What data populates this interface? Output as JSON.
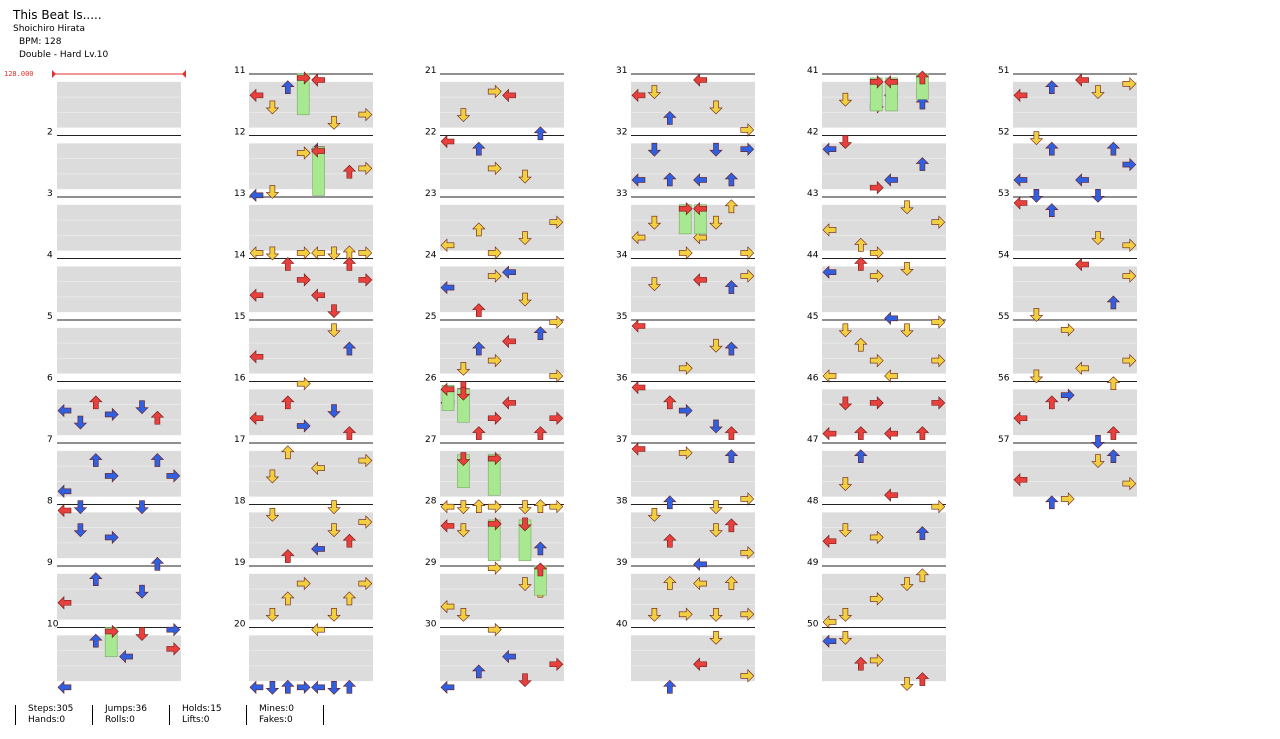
{
  "song": {
    "title": "This Beat Is.....",
    "artist": "Shoichiro Hirata",
    "bpm_text": "BPM: 128",
    "difficulty": "Double - Hard Lv.10",
    "bpm_marker": "128.000"
  },
  "colors": {
    "red": "#e8403c",
    "blue": "#3060e0",
    "yellow": "#f0d040",
    "hold_green": "#a8e890",
    "stripe_gray": "#dcdcdc",
    "bpm_red": "#e03030"
  },
  "measure_labels": [
    "2",
    "3",
    "4",
    "5",
    "6",
    "7",
    "8",
    "9",
    "10",
    "11",
    "12",
    "13",
    "14",
    "15",
    "16",
    "17",
    "18",
    "19",
    "20",
    "21",
    "22",
    "23",
    "24",
    "25",
    "26",
    "27",
    "28",
    "29",
    "30",
    "31",
    "32",
    "33",
    "34",
    "35",
    "36",
    "37",
    "38",
    "39",
    "40",
    "41",
    "42",
    "43",
    "44",
    "45",
    "46",
    "47",
    "48",
    "49",
    "50",
    "51",
    "52",
    "53",
    "54",
    "55",
    "56",
    "57"
  ],
  "stats": {
    "steps": "Steps:305",
    "hands": "Hands:0",
    "jumps": "Jumps:36",
    "rolls": "Rolls:0",
    "holds": "Holds:15",
    "lifts": "Lifts:0",
    "mines": "Mines:0",
    "fakes": "Fakes:0"
  }
}
